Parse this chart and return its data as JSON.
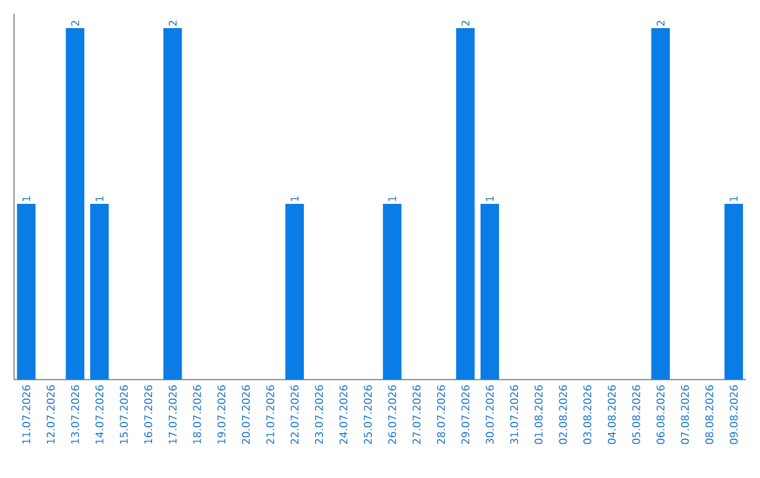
{
  "chart_data": {
    "type": "bar",
    "color": "#0a7ce6",
    "categories": [
      "11.07.2026",
      "12.07.2026",
      "13.07.2026",
      "14.07.2026",
      "15.07.2026",
      "16.07.2026",
      "17.07.2026",
      "18.07.2026",
      "19.07.2026",
      "20.07.2026",
      "21.07.2026",
      "22.07.2026",
      "23.07.2026",
      "24.07.2026",
      "25.07.2026",
      "26.07.2026",
      "27.07.2026",
      "28.07.2026",
      "29.07.2026",
      "30.07.2026",
      "31.07.2026",
      "01.08.2026",
      "02.08.2026",
      "03.08.2026",
      "04.08.2026",
      "05.08.2026",
      "06.08.2026",
      "07.08.2026",
      "08.08.2026",
      "09.08.2026"
    ],
    "values": [
      1,
      0,
      2,
      1,
      0,
      0,
      2,
      0,
      0,
      0,
      0,
      1,
      0,
      0,
      0,
      1,
      0,
      0,
      2,
      1,
      0,
      0,
      0,
      0,
      0,
      0,
      2,
      0,
      0,
      1
    ],
    "value_labels": [
      "1",
      null,
      "2",
      "1",
      null,
      null,
      "2",
      null,
      null,
      null,
      null,
      "1",
      null,
      null,
      null,
      "1",
      null,
      null,
      "2",
      "1",
      null,
      null,
      null,
      null,
      null,
      null,
      "2",
      null,
      null,
      "1"
    ]
  }
}
